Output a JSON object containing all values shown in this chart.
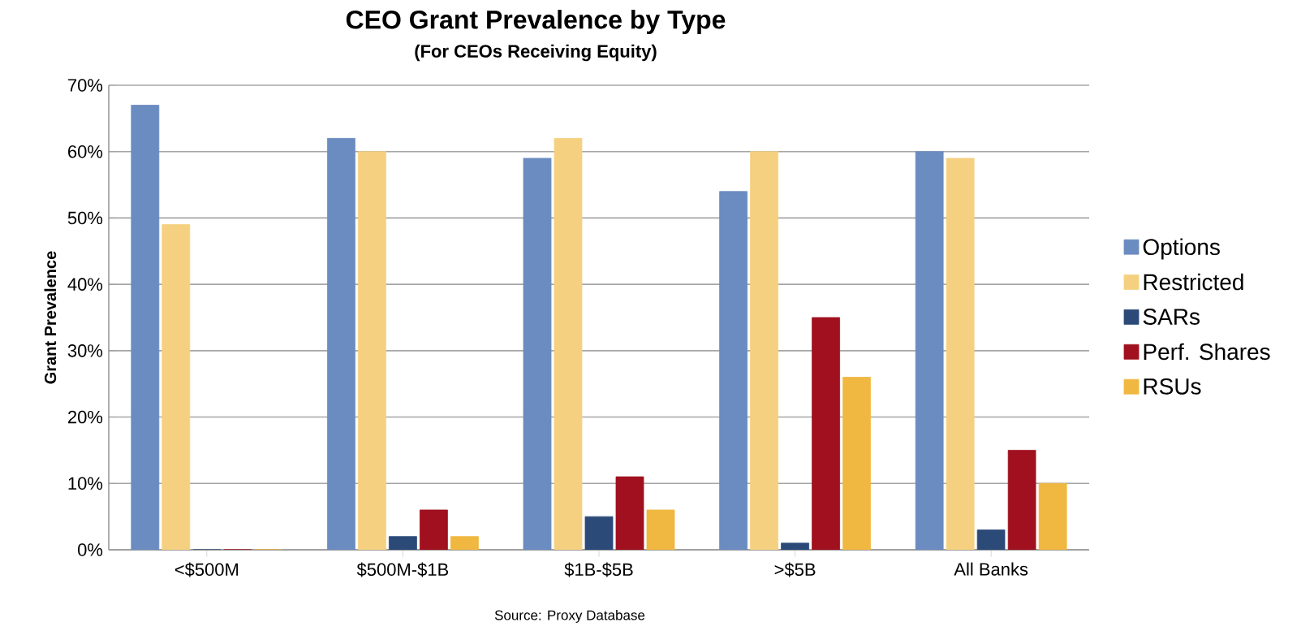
{
  "chart_data": {
    "type": "bar",
    "title": "CEO Grant Prevalence by Type",
    "subtitle": "(For CEOs Receiving Equity)",
    "ylabel": "Grant  Prevalence",
    "annotations": [
      "Source: Proxy Database"
    ],
    "categories": [
      "<$500M",
      "$500M-$1B",
      "$1B-$5B",
      ">$5B",
      "All Banks"
    ],
    "series": [
      {
        "name": "Options",
        "color": "#6b8cc0",
        "values": [
          67,
          62,
          59,
          54,
          60
        ]
      },
      {
        "name": "Restricted",
        "color": "#f5d080",
        "values": [
          49,
          60,
          62,
          60,
          59
        ]
      },
      {
        "name": "SARs",
        "color": "#2b4a78",
        "values": [
          0,
          2,
          5,
          1,
          3
        ]
      },
      {
        "name": "Perf. Shares",
        "color": "#a0101e",
        "values": [
          0,
          6,
          11,
          35,
          15
        ]
      },
      {
        "name": "RSUs",
        "color": "#f0b840",
        "values": [
          0,
          2,
          6,
          26,
          10
        ]
      }
    ],
    "ylim": [
      0,
      70
    ],
    "yticks": [
      {
        "value": 0,
        "label": "0%"
      },
      {
        "value": 10,
        "label": "10%"
      },
      {
        "value": 20,
        "label": "20%"
      },
      {
        "value": 30,
        "label": "30%"
      },
      {
        "value": 40,
        "label": "40%"
      },
      {
        "value": 50,
        "label": "50%"
      },
      {
        "value": 60,
        "label": "60%"
      },
      {
        "value": 70,
        "label": "70%"
      }
    ],
    "grid": "y",
    "legend": "right"
  }
}
